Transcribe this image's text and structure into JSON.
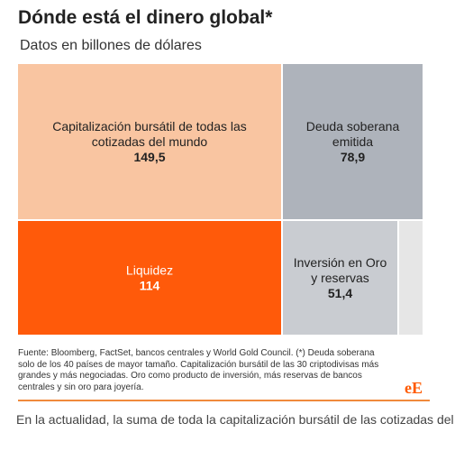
{
  "header": {
    "title": "Dónde está el dinero global*",
    "subtitle": "Datos en billones de dólares"
  },
  "chart_data": {
    "type": "treemap",
    "items": [
      {
        "label_lines": [
          "Capitalización bursátil de todas las",
          "cotizadas del mundo"
        ],
        "value": 149.5,
        "value_label": "149,5",
        "color": "#f9c5a1",
        "text_color": "#222222"
      },
      {
        "label_lines": [
          "Deuda soberana",
          "emitida"
        ],
        "value": 78.9,
        "value_label": "78,9",
        "color": "#aeb3bb",
        "text_color": "#222222"
      },
      {
        "label_lines": [
          "Liquidez"
        ],
        "value": 114,
        "value_label": "114",
        "color": "#ff5a0a",
        "text_color": "#ffffff"
      },
      {
        "label_lines": [
          "Inversión en Oro",
          "y reservas"
        ],
        "value": 51.4,
        "value_label": "51,4",
        "color": "#c9ccd1",
        "text_color": "#222222"
      },
      {
        "label_lines": [],
        "value": null,
        "value_label": "",
        "color": "#e6e6e6",
        "text_color": "#222222"
      }
    ]
  },
  "footer": {
    "source_lines": [
      "Fuente: Bloomberg, FactSet, bancos centrales y World Gold Council. (*) Deuda soberana",
      "solo de los 40 países de mayor tamaño. Capitalización bursátil de las 30 criptodivisas más",
      "grandes y más negociadas. Oro como producto de inversión, más reservas de bancos",
      "centrales y sin oro para joyería."
    ],
    "logo": "eE"
  },
  "article": {
    "body_text": "En la actualidad, la suma de toda la capitalización bursátil de las cotizadas del"
  }
}
